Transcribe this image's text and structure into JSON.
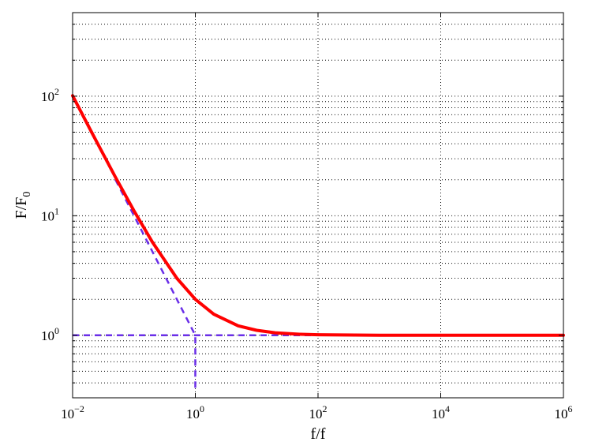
{
  "chart_data": {
    "type": "line",
    "xscale": "log",
    "yscale": "log",
    "xlim": [
      0.01,
      1000000
    ],
    "ylim": [
      0.3,
      500
    ],
    "grid": true,
    "xlabel": "f/f",
    "ylabel": {
      "main": "F/F",
      "subscript": "0"
    },
    "xticks": [
      {
        "base": "10",
        "exp": "−2",
        "value": 0.01
      },
      {
        "base": "10",
        "exp": "0",
        "value": 1
      },
      {
        "base": "10",
        "exp": "2",
        "value": 100
      },
      {
        "base": "10",
        "exp": "4",
        "value": 10000
      },
      {
        "base": "10",
        "exp": "6",
        "value": 1000000
      }
    ],
    "yticks": [
      {
        "base": "10",
        "exp": "0",
        "value": 1
      },
      {
        "base": "10",
        "exp": "1",
        "value": 10
      },
      {
        "base": "10",
        "exp": "2",
        "value": 100
      }
    ],
    "series": [
      {
        "style": "solid",
        "color": "#ff0000",
        "x": [
          0.01,
          0.02,
          0.05,
          0.1,
          0.2,
          0.5,
          1,
          2,
          5,
          10,
          20,
          50,
          100,
          1000,
          10000,
          100000,
          1000000
        ],
        "y": [
          101,
          51,
          21,
          11,
          6,
          3,
          2,
          1.5,
          1.2,
          1.1,
          1.05,
          1.02,
          1.01,
          1.0,
          1.0,
          1.0,
          1.0
        ]
      },
      {
        "style": "dashed",
        "color": "#6a2ee8",
        "x": [
          0.05,
          0.1,
          0.2,
          0.5,
          1,
          1
        ],
        "y": [
          20,
          10,
          5,
          2,
          1,
          0.35
        ]
      },
      {
        "style": "dashed",
        "color": "#6a2ee8",
        "x": [
          0.01,
          1000000
        ],
        "y": [
          1,
          1
        ]
      }
    ]
  }
}
